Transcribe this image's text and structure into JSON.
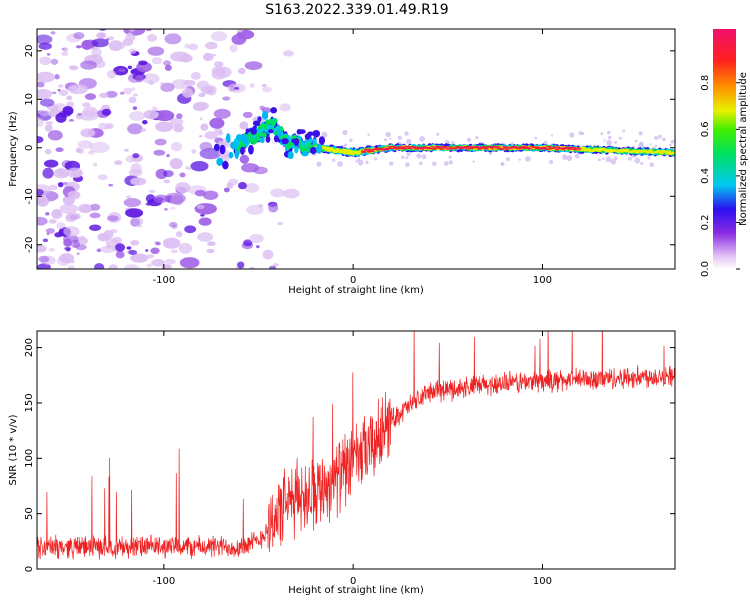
{
  "title": "S163.2022.339.01.49.R19",
  "colors": {
    "snr_line": "#ee2222",
    "frame": "#000000"
  },
  "chart_data": [
    {
      "type": "heatmap",
      "xlabel": "Height of straight line (km)",
      "ylabel": "Frequency (Hz)",
      "xlim": [
        -167,
        170
      ],
      "ylim": [
        -25,
        24.5
      ],
      "x_ticks": [
        -100,
        0,
        100
      ],
      "y_ticks": [
        -20,
        -10,
        0,
        10,
        20
      ],
      "description_ridge": [
        {
          "x": -62,
          "f": 0
        },
        {
          "x": -50,
          "f": 3
        },
        {
          "x": -42,
          "f": 5
        },
        {
          "x": -35,
          "f": 1
        },
        {
          "x": -25,
          "f": 0.5
        },
        {
          "x": -10,
          "f": -0.5
        },
        {
          "x": 0,
          "f": -1
        },
        {
          "x": 20,
          "f": 0
        },
        {
          "x": 100,
          "f": 0
        },
        {
          "x": 170,
          "f": -1
        }
      ],
      "colorbar": {
        "label": "Normalized spectral amplitude",
        "range": [
          0.0,
          1.0
        ],
        "ticks": [
          0.0,
          0.2,
          0.4,
          0.6,
          0.8
        ]
      }
    },
    {
      "type": "line",
      "xlabel": "Height of straight line (km)",
      "ylabel": "SNR (10 * v/v)",
      "xlim": [
        -167,
        170
      ],
      "ylim": [
        0,
        215
      ],
      "x_ticks": [
        -100,
        0,
        100
      ],
      "y_ticks": [
        0,
        50,
        100,
        150,
        200
      ],
      "trend": [
        {
          "x": -167,
          "y": 20
        },
        {
          "x": -60,
          "y": 20
        },
        {
          "x": -50,
          "y": 25
        },
        {
          "x": -40,
          "y": 50
        },
        {
          "x": -30,
          "y": 65
        },
        {
          "x": -15,
          "y": 75
        },
        {
          "x": 0,
          "y": 95
        },
        {
          "x": 10,
          "y": 110
        },
        {
          "x": 20,
          "y": 135
        },
        {
          "x": 40,
          "y": 160
        },
        {
          "x": 80,
          "y": 168
        },
        {
          "x": 170,
          "y": 175
        }
      ],
      "noise_amplitude": 12,
      "series": [
        {
          "name": "SNR",
          "color": "#ee2222"
        }
      ]
    }
  ]
}
